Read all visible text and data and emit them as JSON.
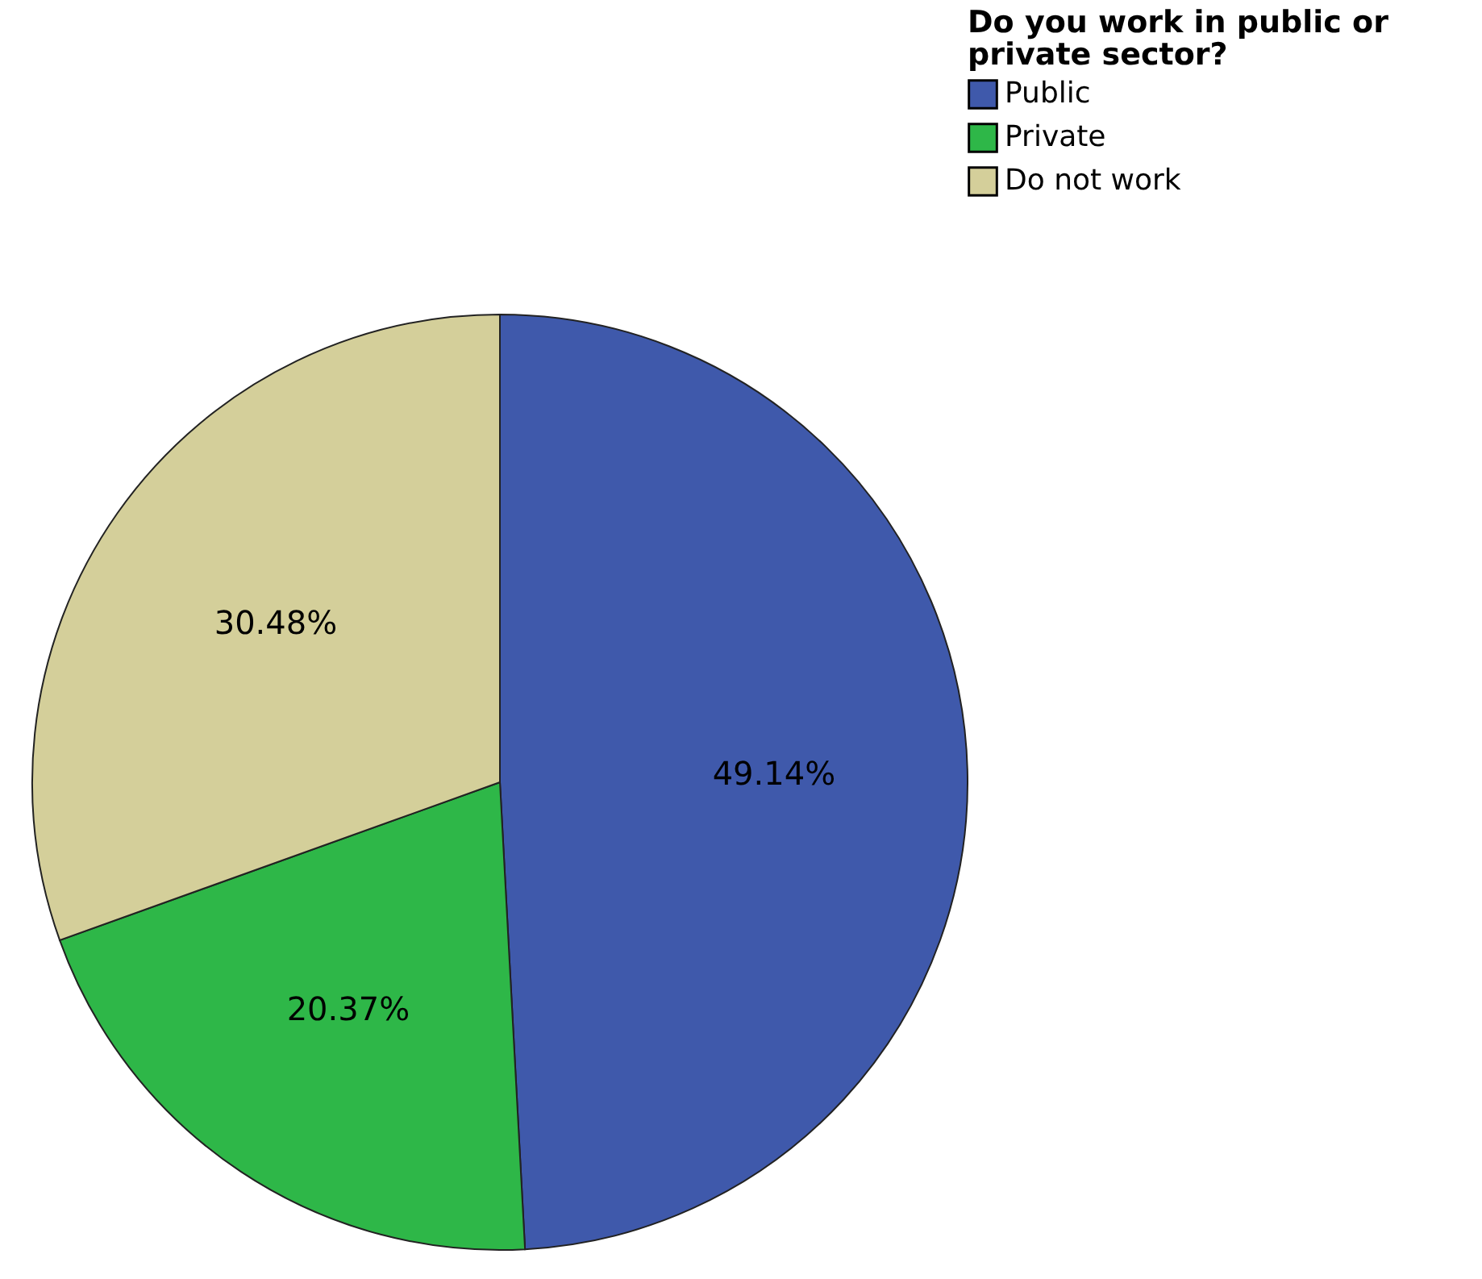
{
  "chart_data": {
    "type": "pie",
    "legend_title": "Do you work in public or private sector?",
    "categories": [
      "Public",
      "Private",
      "Do not work"
    ],
    "values": [
      49.14,
      20.37,
      30.48
    ],
    "colors": [
      "#3f59ab",
      "#2eb748",
      "#d4cf9a"
    ],
    "value_labels": [
      "49.14%",
      "20.37%",
      "30.48%"
    ],
    "legend": "top right"
  }
}
